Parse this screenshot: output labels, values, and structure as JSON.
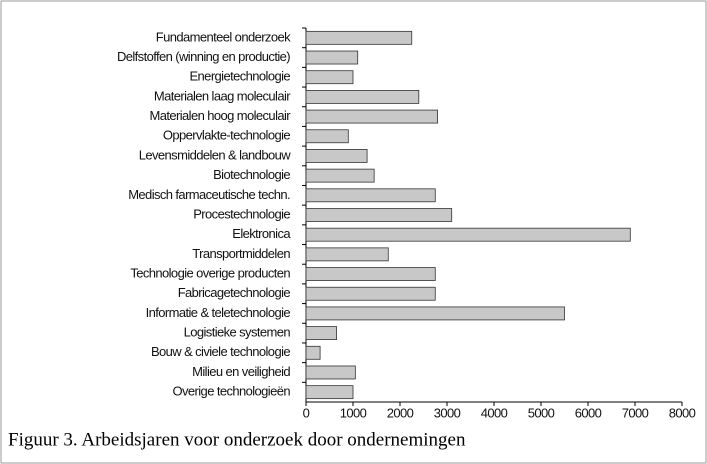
{
  "chart_data": {
    "type": "barh",
    "caption": "Figuur 3. Arbeidsjaren voor onderzoek door ondernemingen",
    "categories": [
      "Fundamenteel onderzoek",
      "Delfstoffen (winning en productie)",
      "Energietechnologie",
      "Materialen laag moleculair",
      "Materialen hoog moleculair",
      "Oppervlakte-technologie",
      "Levensmiddelen & landbouw",
      "Biotechnologie",
      "Medisch farmaceutische techn.",
      "Procestechnologie",
      "Elektronica",
      "Transportmiddelen",
      "Technologie overige producten",
      "Fabricagetechnologie",
      "Informatie & teletechnologie",
      "Logistieke systemen",
      "Bouw & civiele technologie",
      "Milieu en veiligheid",
      "Overige technologieën"
    ],
    "values": [
      2250,
      1100,
      1000,
      2400,
      2800,
      900,
      1300,
      1450,
      2750,
      3100,
      6900,
      1750,
      2750,
      2750,
      5500,
      650,
      300,
      1050,
      1000
    ],
    "color": "#c8c8c8",
    "xlim": [
      0,
      8000
    ],
    "xticks": [
      0,
      1000,
      2000,
      3000,
      4000,
      5000,
      6000,
      7000,
      8000
    ]
  }
}
